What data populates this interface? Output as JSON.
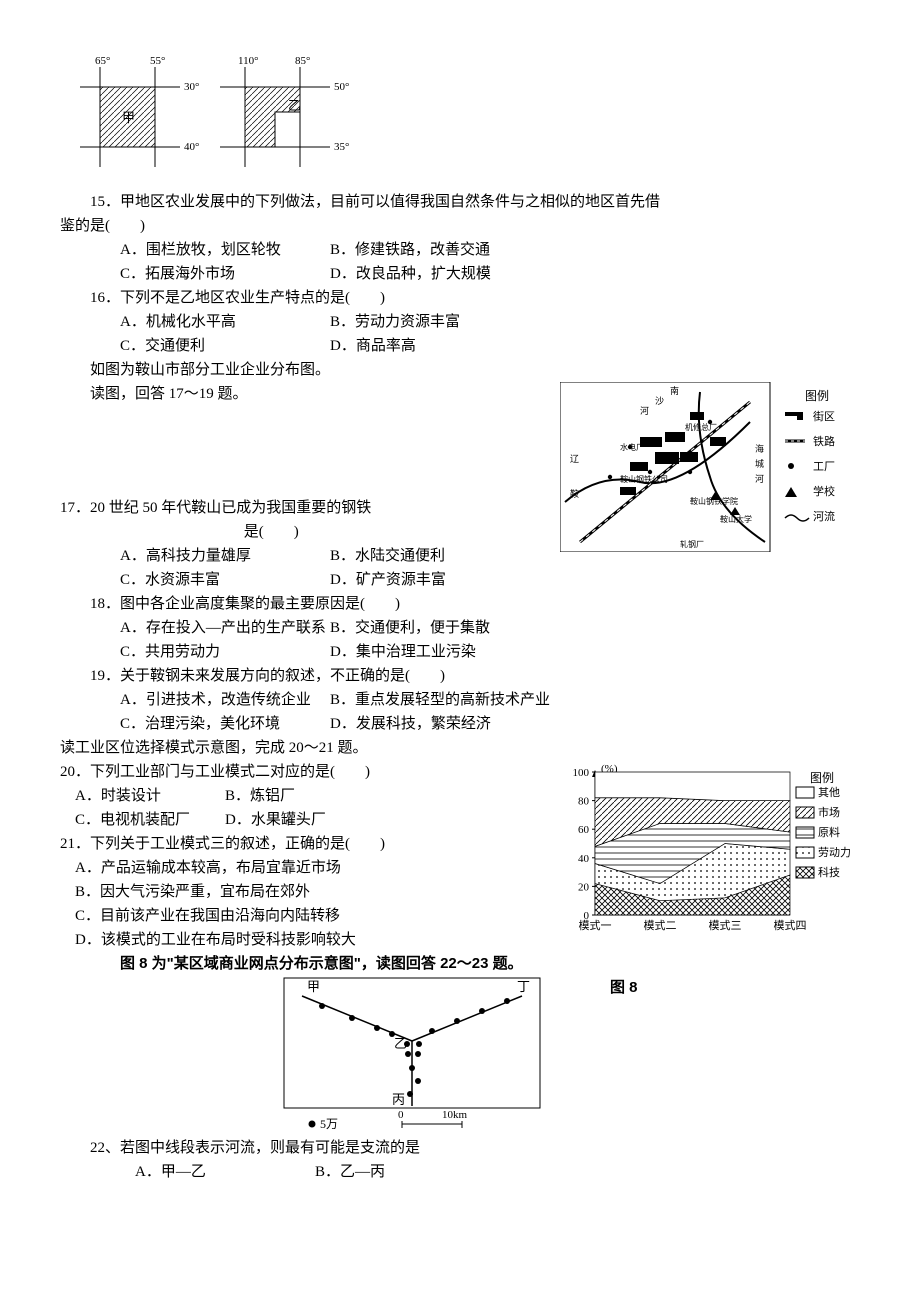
{
  "figure_top": {
    "outer_color": "#000000",
    "hatch_color": "#000000",
    "left": {
      "lon_left": "65°",
      "lon_right": "55°",
      "lat_top": "30°",
      "lat_bot": "40°",
      "label": "甲"
    },
    "right": {
      "lon_left": "110°",
      "lon_right": "85°",
      "lat_top": "50°",
      "lat_bot": "35°",
      "label": "乙"
    }
  },
  "q15": {
    "stem_a": "15．甲地区农业发展中的下列做法，目前可以值得我国自然条件与之相似的地区首先借",
    "stem_b": "鉴的是(　　)",
    "A": "A．围栏放牧，划区轮牧",
    "B": "B．修建铁路，改善交通",
    "C": "C．拓展海外市场",
    "D": "D．改良品种，扩大规模"
  },
  "q16": {
    "stem": "16．下列不是乙地区农业生产特点的是(　　)",
    "A": "A．机械化水平高",
    "B": "B．劳动力资源丰富",
    "C": "C．交通便利",
    "D": "D．商品率高"
  },
  "intro17": {
    "l1": "如图为鞍山市部分工业企业分布图。",
    "l2": "读图，回答 17～19 题。"
  },
  "anshan_map": {
    "legend_title": "图例",
    "legend": [
      {
        "name": "街区",
        "sym": "block"
      },
      {
        "name": "铁路",
        "sym": "rail"
      },
      {
        "name": "工厂",
        "sym": "dot"
      },
      {
        "name": "学校",
        "sym": "triangle"
      },
      {
        "name": "河流",
        "sym": "river"
      }
    ],
    "labels": [
      "机修总厂",
      "鞍山钢铁公司",
      "鞍山钢铁学院",
      "鞍山大学",
      "水电厂",
      "轧钢厂",
      "南",
      "沙",
      "河",
      "辽",
      "海",
      "城",
      "河",
      "鞍"
    ]
  },
  "q17": {
    "stem_a": "17．20 世纪 50 年代鞍山已成为我国重要的钢铁",
    "stem_b": "是(　　)",
    "A": "A．高科技力量雄厚",
    "B": "B．水陆交通便利",
    "C": "C．水资源丰富",
    "D": "D．矿产资源丰富"
  },
  "q18": {
    "stem": "18．图中各企业高度集聚的最主要原因是(　　)",
    "A": "A．存在投入—产出的生产联系",
    "B": "B．交通便利，便于集散",
    "C": "C．共用劳动力",
    "D": "D．集中治理工业污染"
  },
  "q19": {
    "stem": "19．关于鞍钢未来发展方向的叙述，不正确的是(　　)",
    "A": "A．引进技术，改造传统企业",
    "B": "B．重点发展轻型的高新技术产业",
    "C": "C．治理污染，美化环境",
    "D": "D．发展科技，繁荣经济"
  },
  "intro20": "读工业区位选择模式示意图，完成 20～21 题。",
  "chart": {
    "y_label": "(%)",
    "y_ticks": [
      0,
      20,
      40,
      60,
      80,
      100
    ],
    "categories": [
      "模式一",
      "模式二",
      "模式三",
      "模式四"
    ],
    "legend_title": "图例",
    "series": [
      {
        "name": "其他",
        "pattern": "blank",
        "color": "#ffffff",
        "stroke": "#000"
      },
      {
        "name": "市场",
        "pattern": "diag",
        "color": "#000"
      },
      {
        "name": "原料",
        "pattern": "dash",
        "color": "#000"
      },
      {
        "name": "劳动力",
        "pattern": "dotgrid",
        "color": "#000"
      },
      {
        "name": "科技",
        "pattern": "cross",
        "color": "#000"
      }
    ],
    "stack_values": {
      "科技": [
        22,
        10,
        12,
        28
      ],
      "劳动力": [
        14,
        12,
        38,
        18
      ],
      "原料": [
        12,
        42,
        14,
        12
      ],
      "市场": [
        34,
        18,
        16,
        22
      ],
      "其他": [
        18,
        18,
        20,
        20
      ]
    },
    "chart_bg": "#ffffff",
    "axis_color": "#000000",
    "font_size": 11
  },
  "q20": {
    "stem": "20．下列工业部门与工业模式二对应的是(　　)",
    "A": "A．时装设计",
    "B": "B．炼铝厂",
    "C": "C．电视机装配厂",
    "D": "D．水果罐头厂"
  },
  "q21": {
    "stem": "21．下列关于工业模式三的叙述，正确的是(　　)",
    "A": "A．产品运输成本较高，布局宜靠近市场",
    "B": "B．因大气污染严重，宜布局在郊外",
    "C": "C．目前该产业在我国由沿海向内陆转移",
    "D": "D．该模式的工业在布局时受科技影响较大"
  },
  "intro22": "图 8 为\"某区域商业网点分布示意图\"，读图回答 22～23 题。",
  "fig8": {
    "labels": {
      "tl": "甲",
      "tr": "丁",
      "mid": "乙",
      "bot": "丙"
    },
    "pop_legend": "5万",
    "scale_0": "0",
    "scale_km": "10km",
    "caption": "图 8",
    "dot_color": "#000",
    "line_color": "#000",
    "bg": "#fff"
  },
  "q22": {
    "stem": "22、若图中线段表示河流，则最有可能是支流的是",
    "A": "A．甲—乙",
    "B": "B．乙—丙"
  }
}
